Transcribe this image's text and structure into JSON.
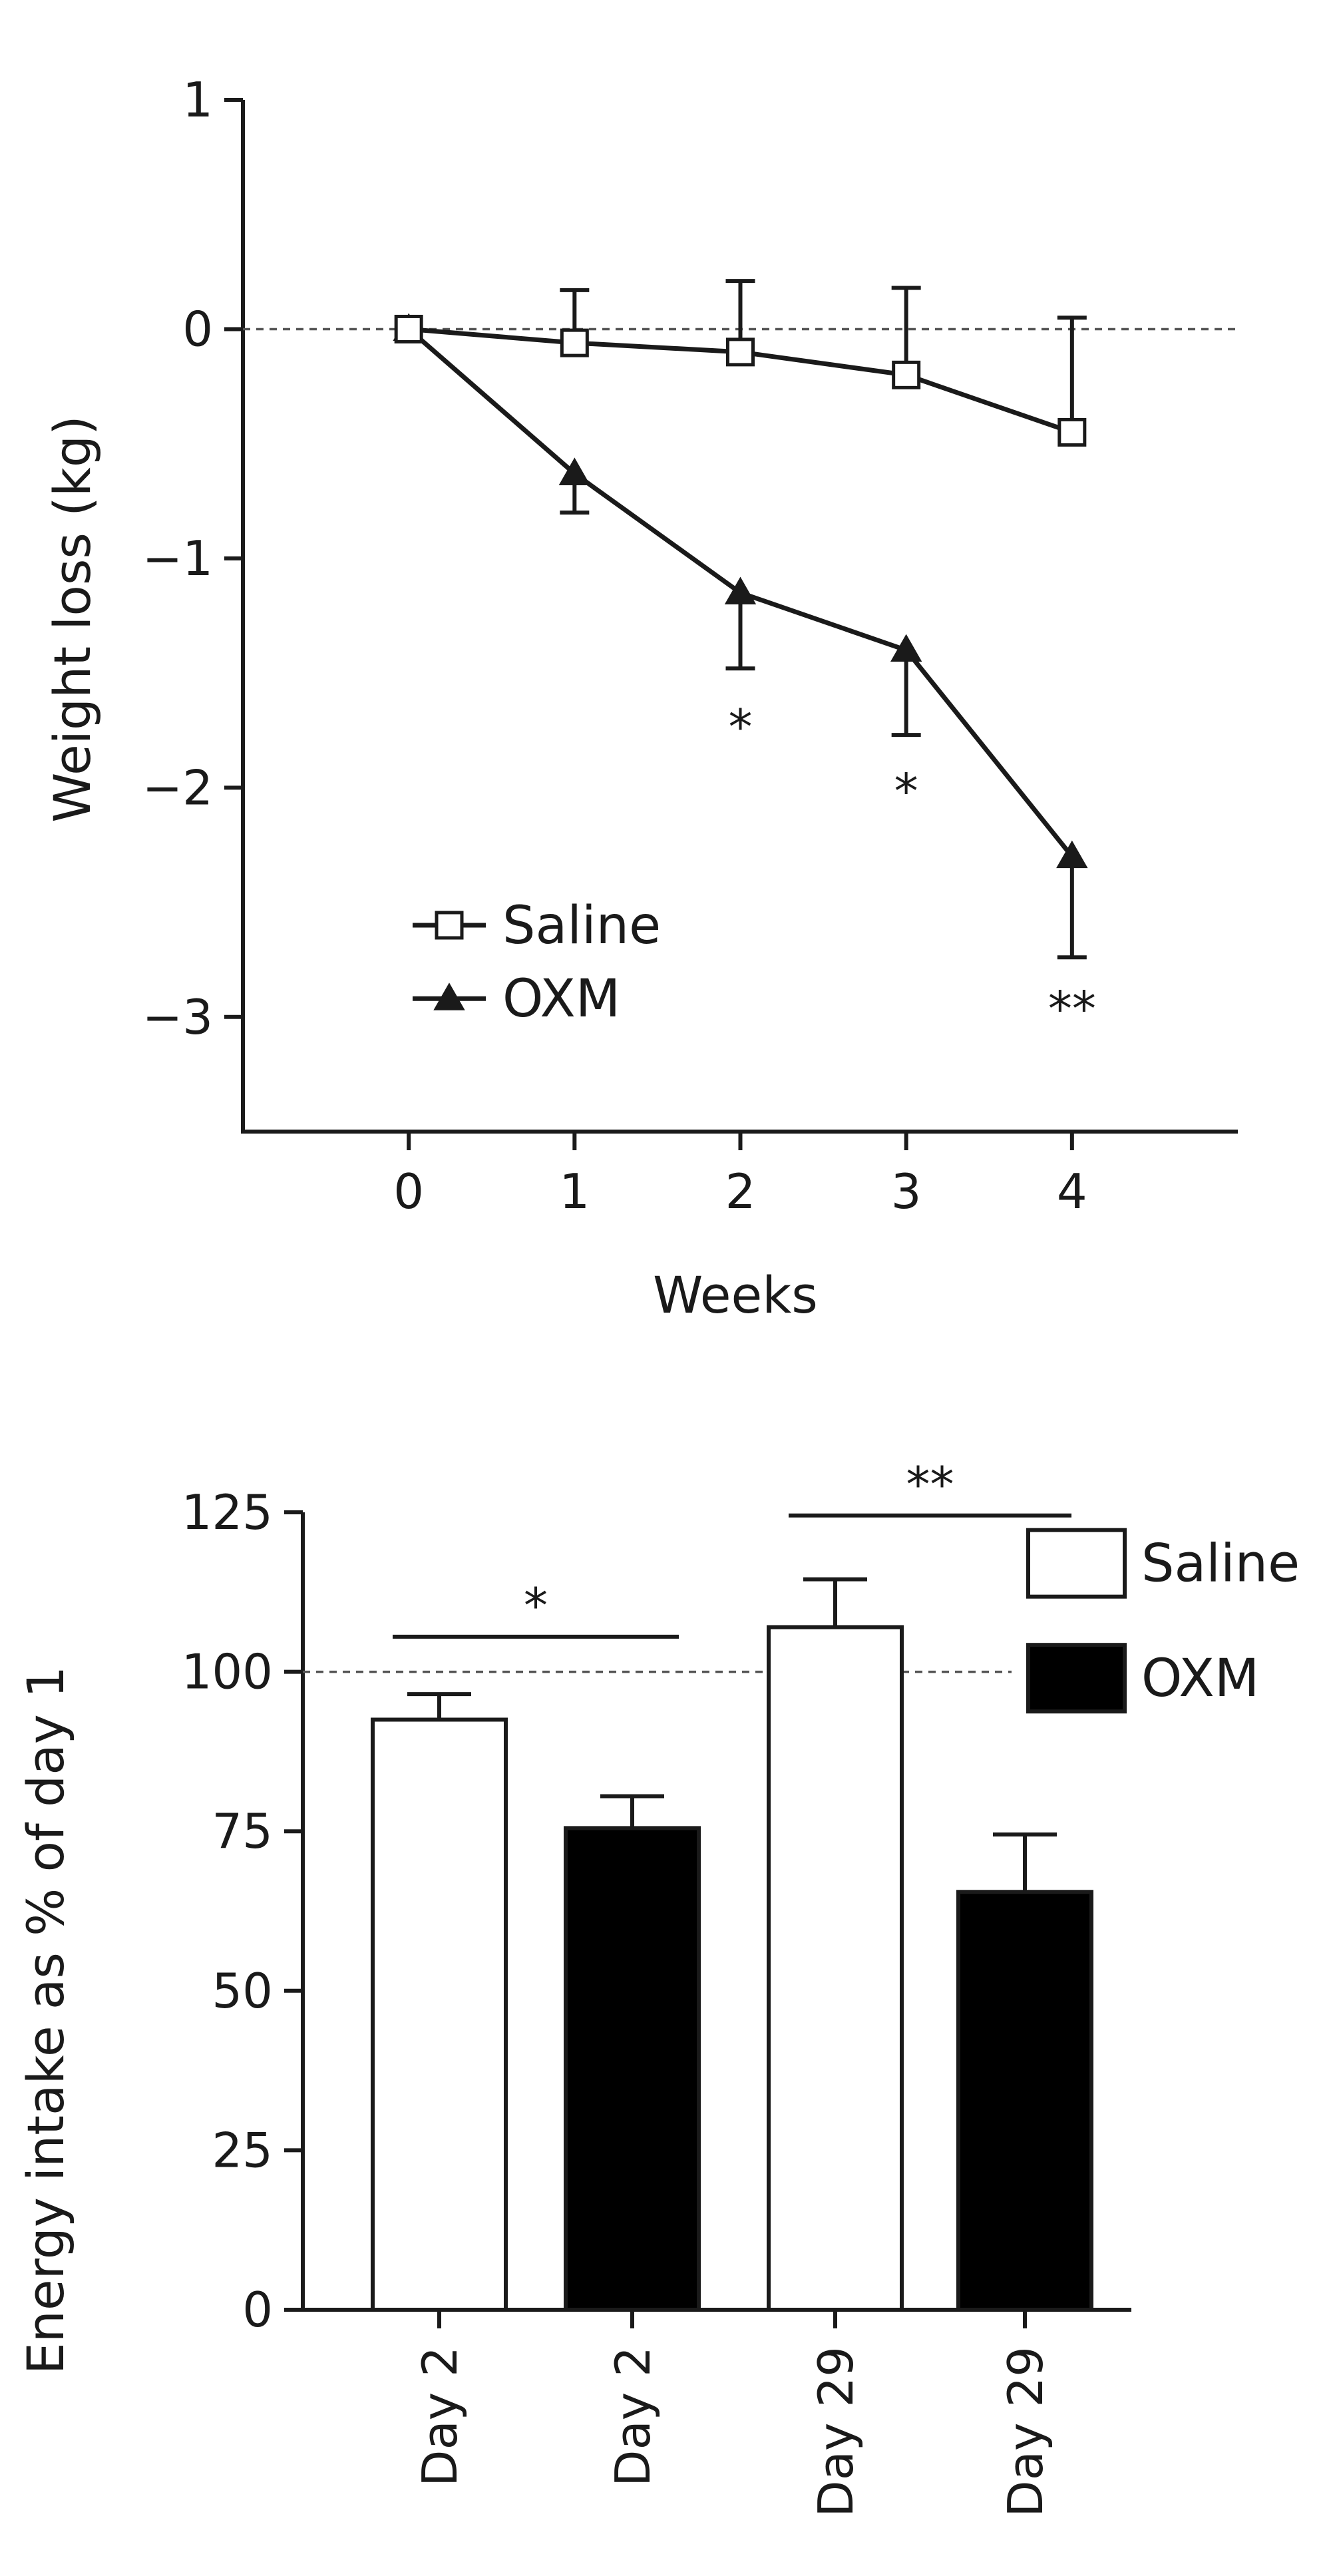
{
  "chart_data": [
    {
      "type": "line",
      "xlabel": "Weeks",
      "ylabel": "Weight loss (kg)",
      "xlim": [
        -1,
        5
      ],
      "ylim": [
        -3.5,
        1
      ],
      "x": [
        0,
        1,
        2,
        3,
        4
      ],
      "x_ticks": [
        "0",
        "1",
        "2",
        "3",
        "4"
      ],
      "y_ticks": [
        {
          "value": 1,
          "label": "1"
        },
        {
          "value": 0,
          "label": "0"
        },
        {
          "value": -1,
          "label": "−1"
        },
        {
          "value": -2,
          "label": "−2"
        },
        {
          "value": -3,
          "label": "−3"
        }
      ],
      "reference_line": 0,
      "grid": false,
      "legend_position": "bottom-left",
      "series": [
        {
          "name": "Saline",
          "marker": "open-square",
          "values": [
            0,
            -0.06,
            -0.1,
            -0.2,
            -0.45
          ],
          "error": [
            0,
            0.23,
            0.31,
            0.38,
            0.5
          ],
          "error_direction": "up"
        },
        {
          "name": "OXM",
          "marker": "filled-triangle",
          "values": [
            0,
            -0.63,
            -1.15,
            -1.4,
            -2.3
          ],
          "error": [
            0,
            0.17,
            0.33,
            0.37,
            0.44
          ],
          "error_direction": "down"
        }
      ],
      "annotations": [
        {
          "x": 2,
          "y": -1.72,
          "text": "*"
        },
        {
          "x": 3,
          "y": -2.0,
          "text": "*"
        },
        {
          "x": 4,
          "y": -2.95,
          "text": "**"
        }
      ]
    },
    {
      "type": "bar",
      "ylabel": "Energy intake as % of day 1",
      "ylim": [
        0,
        125
      ],
      "y_ticks": [
        "0",
        "25",
        "50",
        "75",
        "100",
        "125"
      ],
      "categories": [
        "Day 2",
        "Day 2",
        "Day 29",
        "Day 29"
      ],
      "bar_series": [
        "Saline",
        "OXM",
        "Saline",
        "OXM"
      ],
      "values": [
        92.5,
        75.5,
        107,
        65.5
      ],
      "error": [
        4,
        5,
        7.5,
        9
      ],
      "reference_line": 100,
      "grid": false,
      "legend_position": "top-right",
      "series": [
        {
          "name": "Saline",
          "color": "#ffffff"
        },
        {
          "name": "OXM",
          "color": "#000000"
        }
      ],
      "significance": [
        {
          "from": 0,
          "to": 1,
          "y": 105.5,
          "text": "*"
        },
        {
          "from": 2,
          "to": 3,
          "y": 124.5,
          "text": "**"
        }
      ]
    }
  ]
}
